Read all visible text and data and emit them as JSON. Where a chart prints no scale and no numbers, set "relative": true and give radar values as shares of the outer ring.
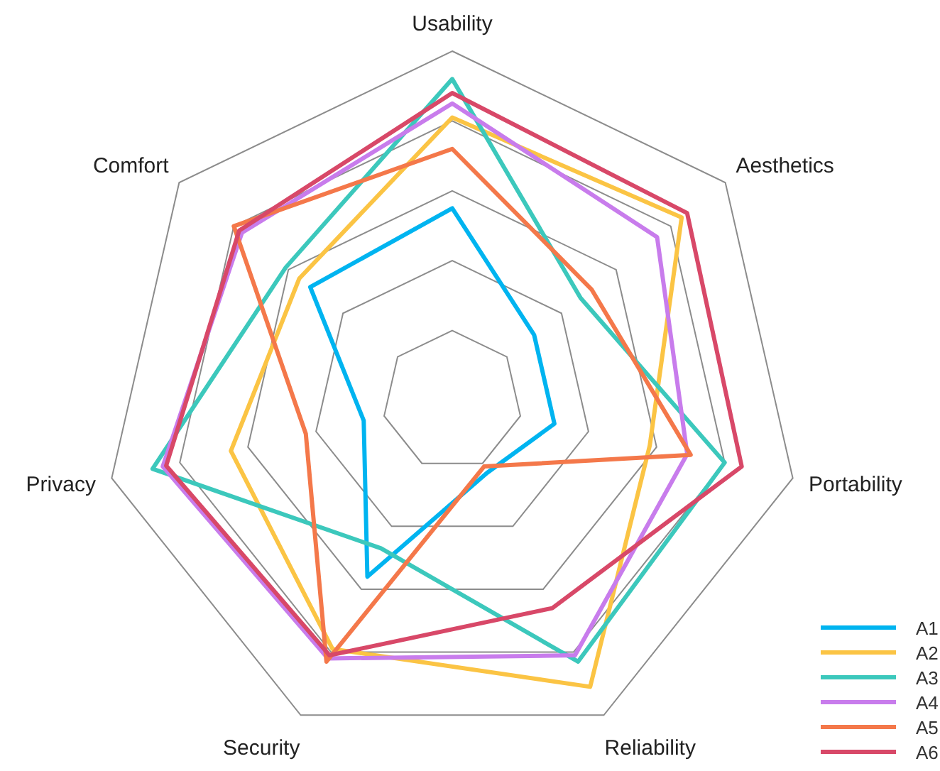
{
  "chart_data": {
    "type": "radar",
    "relative": true,
    "grid": true,
    "legend": "bottom right",
    "categories": [
      "Usability",
      "Aesthetics",
      "Portability",
      "Reliability",
      "Security",
      "Privacy",
      "Comfort"
    ],
    "series": [
      {
        "name": "A1",
        "color": "#00b4f0",
        "values": [
          0.55,
          0.3,
          0.3,
          0.23,
          0.56,
          0.26,
          0.52
        ]
      },
      {
        "name": "A2",
        "color": "#fbc444",
        "values": [
          0.81,
          0.84,
          0.58,
          0.91,
          0.79,
          0.65,
          0.56
        ]
      },
      {
        "name": "A3",
        "color": "#3cc8bc",
        "values": [
          0.92,
          0.47,
          0.8,
          0.83,
          0.47,
          0.88,
          0.61
        ]
      },
      {
        "name": "A4",
        "color": "#c87cec",
        "values": [
          0.85,
          0.75,
          0.69,
          0.81,
          0.82,
          0.85,
          0.77
        ]
      },
      {
        "name": "A5",
        "color": "#f4784a",
        "values": [
          0.72,
          0.51,
          0.7,
          0.21,
          0.83,
          0.43,
          0.8
        ]
      },
      {
        "name": "A6",
        "color": "#d84868",
        "values": [
          0.88,
          0.86,
          0.85,
          0.66,
          0.81,
          0.84,
          0.78
        ]
      }
    ]
  }
}
